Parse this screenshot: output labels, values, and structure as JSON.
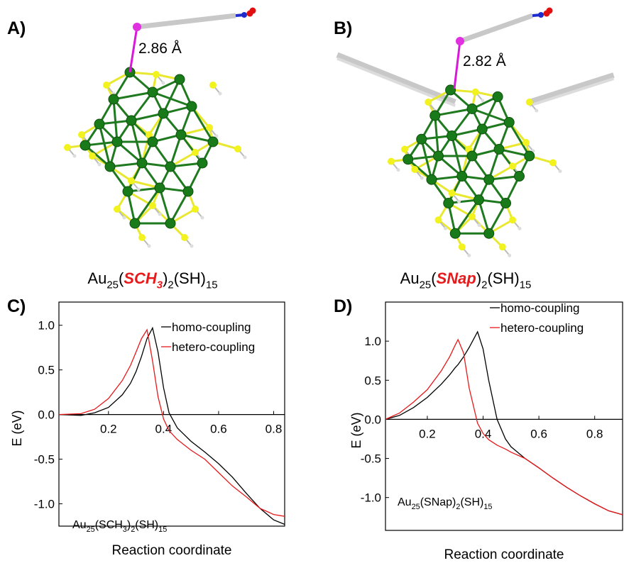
{
  "structures": [
    {
      "label": "A)",
      "distance": "2.86 Å",
      "formula": [
        {
          "text": "Au"
        },
        {
          "text": "25",
          "style": "sub"
        },
        {
          "text": "("
        },
        {
          "text": "SCH",
          "style": "em"
        },
        {
          "text": "3",
          "style": "em-sub"
        },
        {
          "text": ")"
        },
        {
          "text": "2",
          "style": "sub"
        },
        {
          "text": "(SH)"
        },
        {
          "text": "15",
          "style": "sub"
        }
      ]
    },
    {
      "label": "B)",
      "distance": "2.82 Å",
      "formula": [
        {
          "text": "Au"
        },
        {
          "text": "25",
          "style": "sub"
        },
        {
          "text": "("
        },
        {
          "text": "SNap",
          "style": "em"
        },
        {
          "text": ")"
        },
        {
          "text": "2",
          "style": "sub"
        },
        {
          "text": "(SH)"
        },
        {
          "text": "15",
          "style": "sub"
        }
      ]
    }
  ],
  "chart_data": [
    {
      "type": "line",
      "panel_label": "C)",
      "xlabel": "Reaction coordinate",
      "ylabel": "E (eV)",
      "annotation": [
        {
          "text": "Au"
        },
        {
          "text": "25",
          "style": "sub"
        },
        {
          "text": "(SCH"
        },
        {
          "text": "3",
          "style": "sub"
        },
        {
          "text": ")"
        },
        {
          "text": "2",
          "style": "sub"
        },
        {
          "text": "(SH)"
        },
        {
          "text": "15",
          "style": "sub"
        }
      ],
      "xlim": [
        0.02,
        0.84
      ],
      "xticks": [
        0.2,
        0.4,
        0.6,
        0.8
      ],
      "ylim": [
        -1.25,
        1.26
      ],
      "yticks": [
        {
          "value": 1,
          "label": "1.0"
        },
        0.5,
        {
          "value": 0,
          "label": "0.0"
        },
        -0.5,
        {
          "value": -1,
          "label": "-1.0"
        }
      ],
      "legend": "upper right",
      "x": [
        0.02,
        0.1,
        0.15,
        0.2,
        0.25,
        0.28,
        0.3,
        0.32,
        0.34,
        0.36,
        0.38,
        0.4,
        0.42,
        0.45,
        0.5,
        0.55,
        0.6,
        0.65,
        0.7,
        0.75,
        0.8,
        0.84
      ],
      "series": [
        {
          "name": "homo-coupling",
          "color": "#000000",
          "values": [
            0,
            -0.01,
            0.02,
            0.08,
            0.22,
            0.35,
            0.48,
            0.65,
            0.85,
            0.97,
            0.7,
            0.3,
            0.02,
            -0.15,
            -0.3,
            -0.42,
            -0.55,
            -0.7,
            -0.88,
            -1.05,
            -1.18,
            -1.23
          ]
        },
        {
          "name": "hetero-coupling",
          "color": "#e8191b",
          "values": [
            0,
            0.01,
            0.06,
            0.18,
            0.38,
            0.55,
            0.7,
            0.85,
            0.95,
            0.6,
            0.2,
            -0.05,
            -0.18,
            -0.28,
            -0.4,
            -0.5,
            -0.65,
            -0.8,
            -0.92,
            -1.05,
            -1.12,
            -1.14
          ]
        }
      ]
    },
    {
      "type": "line",
      "panel_label": "D)",
      "xlabel": "Reaction coordinate",
      "ylabel": "E (eV)",
      "annotation": [
        {
          "text": "Au"
        },
        {
          "text": "25",
          "style": "sub"
        },
        {
          "text": "(SNap)"
        },
        {
          "text": "2",
          "style": "sub"
        },
        {
          "text": "(SH)"
        },
        {
          "text": "15",
          "style": "sub"
        }
      ],
      "xlim": [
        0.05,
        0.9
      ],
      "xticks": [
        0.2,
        0.4,
        0.6,
        0.8
      ],
      "ylim": [
        -1.42,
        1.5
      ],
      "yticks": [
        {
          "value": 1,
          "label": "1.0"
        },
        0.5,
        {
          "value": 0,
          "label": "0.0"
        },
        -0.5,
        {
          "value": -1,
          "label": "-1.0"
        }
      ],
      "legend": "upper right",
      "x": [
        0.05,
        0.1,
        0.15,
        0.2,
        0.25,
        0.28,
        0.3,
        0.31,
        0.33,
        0.35,
        0.38,
        0.4,
        0.42,
        0.45,
        0.48,
        0.5,
        0.55,
        0.6,
        0.65,
        0.7,
        0.75,
        0.8,
        0.85,
        0.9
      ],
      "series": [
        {
          "name": "homo-coupling",
          "color": "#000000",
          "values": [
            0,
            0.05,
            0.15,
            0.28,
            0.45,
            0.57,
            0.66,
            0.7,
            0.8,
            0.92,
            1.12,
            0.9,
            0.5,
            0,
            -0.25,
            -0.35,
            -0.5,
            -0.62,
            -0.75,
            -0.87,
            -0.98,
            -1.08,
            -1.17,
            -1.22
          ]
        },
        {
          "name": "hetero-coupling",
          "color": "#e8191b",
          "values": [
            0,
            0.08,
            0.22,
            0.38,
            0.62,
            0.8,
            0.95,
            1.02,
            0.85,
            0.4,
            -0.05,
            -0.18,
            -0.26,
            -0.33,
            -0.38,
            -0.42,
            -0.5,
            -0.62,
            -0.75,
            -0.87,
            -0.98,
            -1.08,
            -1.17,
            -1.22
          ]
        }
      ]
    }
  ]
}
